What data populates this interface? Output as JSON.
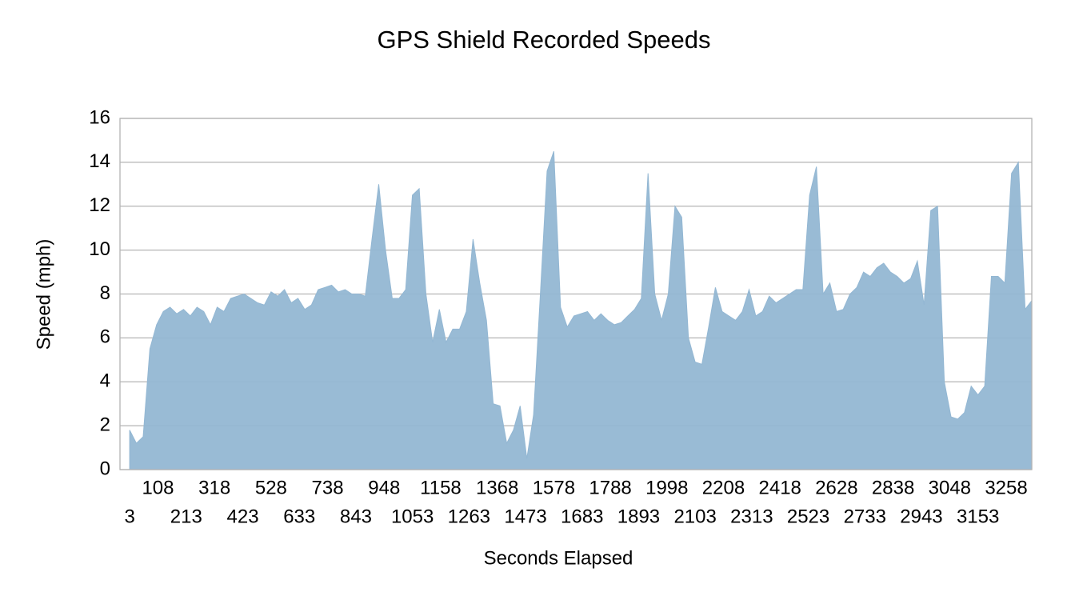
{
  "chart_data": {
    "type": "area",
    "title": "GPS Shield Recorded Speeds",
    "x_label": "Seconds Elapsed",
    "y_label": "Speed (mph)",
    "color": "#93b7d3",
    "grid": true,
    "xlim": [
      -33,
      3353
    ],
    "ylim": [
      0,
      16
    ],
    "yticks": [
      0,
      2,
      4,
      6,
      8,
      10,
      12,
      14,
      16
    ],
    "xticks": [
      3,
      108,
      213,
      318,
      423,
      528,
      633,
      738,
      843,
      948,
      1053,
      1158,
      1263,
      1368,
      1473,
      1578,
      1683,
      1788,
      1893,
      1998,
      2103,
      2208,
      2313,
      2418,
      2523,
      2628,
      2733,
      2838,
      2943,
      3048,
      3153,
      3258
    ],
    "x": [
      3,
      28,
      53,
      78,
      103,
      128,
      153,
      178,
      203,
      228,
      253,
      278,
      303,
      328,
      353,
      378,
      403,
      428,
      453,
      478,
      503,
      528,
      553,
      578,
      603,
      628,
      653,
      678,
      703,
      728,
      753,
      778,
      803,
      828,
      853,
      878,
      903,
      928,
      953,
      978,
      1003,
      1028,
      1053,
      1078,
      1103,
      1128,
      1153,
      1178,
      1203,
      1228,
      1253,
      1278,
      1303,
      1328,
      1353,
      1378,
      1403,
      1428,
      1453,
      1478,
      1503,
      1528,
      1553,
      1578,
      1603,
      1628,
      1653,
      1678,
      1703,
      1728,
      1753,
      1778,
      1803,
      1828,
      1853,
      1878,
      1903,
      1928,
      1953,
      1978,
      2003,
      2028,
      2053,
      2078,
      2103,
      2128,
      2153,
      2178,
      2203,
      2228,
      2253,
      2278,
      2303,
      2328,
      2353,
      2378,
      2403,
      2428,
      2453,
      2478,
      2503,
      2528,
      2553,
      2578,
      2603,
      2628,
      2653,
      2678,
      2703,
      2728,
      2753,
      2778,
      2803,
      2828,
      2853,
      2878,
      2903,
      2928,
      2953,
      2978,
      3003,
      3028,
      3053,
      3078,
      3103,
      3128,
      3153,
      3178,
      3203,
      3228,
      3253,
      3278,
      3303,
      3328,
      3353
    ],
    "values": [
      1.8,
      1.2,
      1.5,
      5.5,
      6.6,
      7.2,
      7.4,
      7.1,
      7.3,
      7.0,
      7.4,
      7.2,
      6.6,
      7.4,
      7.2,
      7.8,
      7.9,
      8.0,
      7.8,
      7.6,
      7.5,
      8.1,
      7.9,
      8.2,
      7.6,
      7.8,
      7.3,
      7.5,
      8.2,
      8.3,
      8.4,
      8.1,
      8.2,
      8.0,
      8.0,
      7.9,
      10.5,
      13.0,
      10.0,
      7.8,
      7.8,
      8.2,
      12.5,
      12.8,
      8.0,
      5.8,
      7.3,
      5.8,
      6.4,
      6.4,
      7.2,
      10.5,
      8.5,
      6.8,
      3.0,
      2.9,
      1.2,
      1.8,
      2.9,
      0.5,
      2.5,
      8.0,
      13.6,
      14.5,
      7.4,
      6.5,
      7.0,
      7.1,
      7.2,
      6.8,
      7.1,
      6.8,
      6.6,
      6.7,
      7.0,
      7.3,
      7.8,
      13.5,
      8.0,
      6.8,
      8.0,
      12.0,
      11.5,
      6.0,
      4.9,
      4.8,
      6.5,
      8.3,
      7.2,
      7.0,
      6.8,
      7.2,
      8.2,
      7.0,
      7.2,
      7.9,
      7.6,
      7.8,
      8.0,
      8.2,
      8.2,
      12.5,
      13.8,
      8.0,
      8.5,
      7.2,
      7.3,
      8.0,
      8.3,
      9.0,
      8.8,
      9.2,
      9.4,
      9.0,
      8.8,
      8.5,
      8.7,
      9.5,
      7.5,
      11.8,
      12.0,
      4.0,
      2.4,
      2.3,
      2.6,
      3.8,
      3.4,
      3.8,
      8.8,
      8.8,
      8.5,
      13.5,
      14.0,
      7.3,
      7.7
    ]
  }
}
